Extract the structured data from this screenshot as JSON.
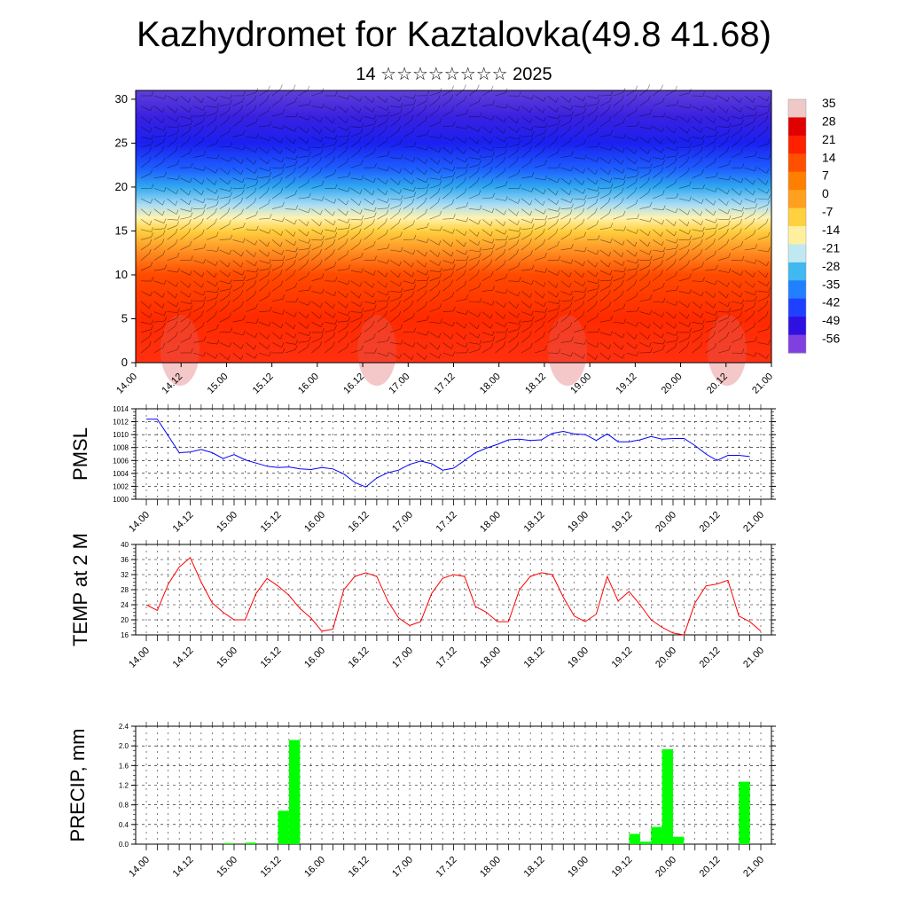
{
  "header": {
    "title": "Kazhydromet for Kaztalovka(49.8 41.68)",
    "subtitle": "14 ☆☆☆☆☆☆☆☆ 2025"
  },
  "chart_data": [
    {
      "type": "heatmap",
      "name": "cross-section",
      "x_ticks": [
        "14.00",
        "14.12",
        "15.00",
        "15.12",
        "16.00",
        "16.12",
        "17.00",
        "17.12",
        "18.00",
        "18.12",
        "19.00",
        "19.12",
        "20.00",
        "20.12",
        "21.00"
      ],
      "y_ticks": [
        0,
        5,
        10,
        15,
        20,
        25,
        30
      ],
      "ylim": [
        0,
        31
      ],
      "colorbar_labels": [
        "35",
        "28",
        "21",
        "14",
        "7",
        "0",
        "-7",
        "-14",
        "-21",
        "-28",
        "-35",
        "-42",
        "-49",
        "-56"
      ],
      "colorbar_colors": [
        "#f0c8c8",
        "#e00000",
        "#ff2000",
        "#ff5000",
        "#ff8000",
        "#ffa020",
        "#ffd040",
        "#fff0a0",
        "#c0e8f0",
        "#40b8f0",
        "#2080ff",
        "#2040ff",
        "#3010e0",
        "#8040e0"
      ],
      "layers": [
        {
          "height": 0,
          "temp": 32
        },
        {
          "height": 5,
          "temp": 24
        },
        {
          "height": 10,
          "temp": 10
        },
        {
          "height": 15,
          "temp": -10
        },
        {
          "height": 20,
          "temp": -32
        },
        {
          "height": 25,
          "temp": -55
        },
        {
          "height": 31,
          "temp": -58
        }
      ]
    },
    {
      "type": "line",
      "ylabel": "PMSL",
      "x_ticks": [
        "14.00",
        "14.12",
        "15.00",
        "15.12",
        "16.00",
        "16.12",
        "17.00",
        "17.12",
        "18.00",
        "18.12",
        "19.00",
        "19.12",
        "20.00",
        "20.12",
        "21.00"
      ],
      "y_ticks": [
        "1000",
        "1002",
        "1004",
        "1006",
        "1008",
        "1010",
        "1012",
        "1014"
      ],
      "ylim": [
        1000,
        1014
      ],
      "color": "#0000ff",
      "values": [
        1012.4,
        1012.4,
        1009.8,
        1007.2,
        1007.3,
        1007.7,
        1007.2,
        1006.3,
        1006.9,
        1006.1,
        1005.6,
        1005.1,
        1004.9,
        1005.0,
        1004.7,
        1004.6,
        1004.9,
        1004.7,
        1003.9,
        1002.6,
        1001.9,
        1003.3,
        1004.1,
        1004.5,
        1005.4,
        1005.9,
        1005.5,
        1004.5,
        1004.8,
        1006.0,
        1007.2,
        1007.9,
        1008.5,
        1009.2,
        1009.3,
        1009.1,
        1009.2,
        1010.2,
        1010.5,
        1010.1,
        1010.0,
        1009.1,
        1010.1,
        1008.9,
        1008.9,
        1009.2,
        1009.7,
        1009.3,
        1009.4,
        1009.4,
        1008.3,
        1007.0,
        1006.0,
        1006.8,
        1006.8,
        1006.6
      ]
    },
    {
      "type": "line",
      "ylabel": "TEMP at 2 M",
      "x_ticks": [
        "14.00",
        "14.12",
        "15.00",
        "15.12",
        "16.00",
        "16.12",
        "17.00",
        "17.12",
        "18.00",
        "18.12",
        "19.00",
        "19.12",
        "20.00",
        "20.12",
        "21.00"
      ],
      "y_ticks": [
        "16",
        "20",
        "24",
        "28",
        "32",
        "36",
        "40"
      ],
      "ylim": [
        16,
        40
      ],
      "color": "#ff0000",
      "values": [
        24,
        22.5,
        29.5,
        34,
        36.5,
        30,
        24.5,
        22,
        20,
        20,
        27,
        31,
        29,
        26.5,
        23,
        20.5,
        17,
        17.5,
        28,
        31.5,
        32.5,
        31.5,
        25,
        20.5,
        18.5,
        19.5,
        27,
        31,
        32,
        31.5,
        23.5,
        22,
        19.5,
        19.5,
        28,
        31.5,
        32.5,
        32,
        26,
        21,
        19.5,
        21.5,
        31.5,
        25,
        27.5,
        24,
        20,
        18,
        16.5,
        16,
        24.5,
        29,
        29.5,
        30.5,
        21,
        19.5,
        17
      ]
    },
    {
      "type": "bar",
      "ylabel": "PRECIP, mm",
      "x_ticks": [
        "14.00",
        "14.12",
        "15.00",
        "15.12",
        "16.00",
        "16.12",
        "17.00",
        "17.12",
        "18.00",
        "18.12",
        "19.00",
        "19.12",
        "20.00",
        "20.12",
        "21.00"
      ],
      "y_ticks": [
        "0.0",
        "0.4",
        "0.8",
        "1.2",
        "1.6",
        "2.0",
        "2.4"
      ],
      "ylim": [
        0,
        2.4
      ],
      "color": "#00ff00",
      "bars": [
        {
          "t": 7,
          "v": 0.02
        },
        {
          "t": 9,
          "v": 0.03
        },
        {
          "t": 12,
          "v": 0.68
        },
        {
          "t": 13,
          "v": 2.12
        },
        {
          "t": 44,
          "v": 0.21
        },
        {
          "t": 45,
          "v": 0.05
        },
        {
          "t": 46,
          "v": 0.35
        },
        {
          "t": 47,
          "v": 1.93
        },
        {
          "t": 48,
          "v": 0.15
        },
        {
          "t": 54,
          "v": 1.27
        }
      ]
    }
  ]
}
